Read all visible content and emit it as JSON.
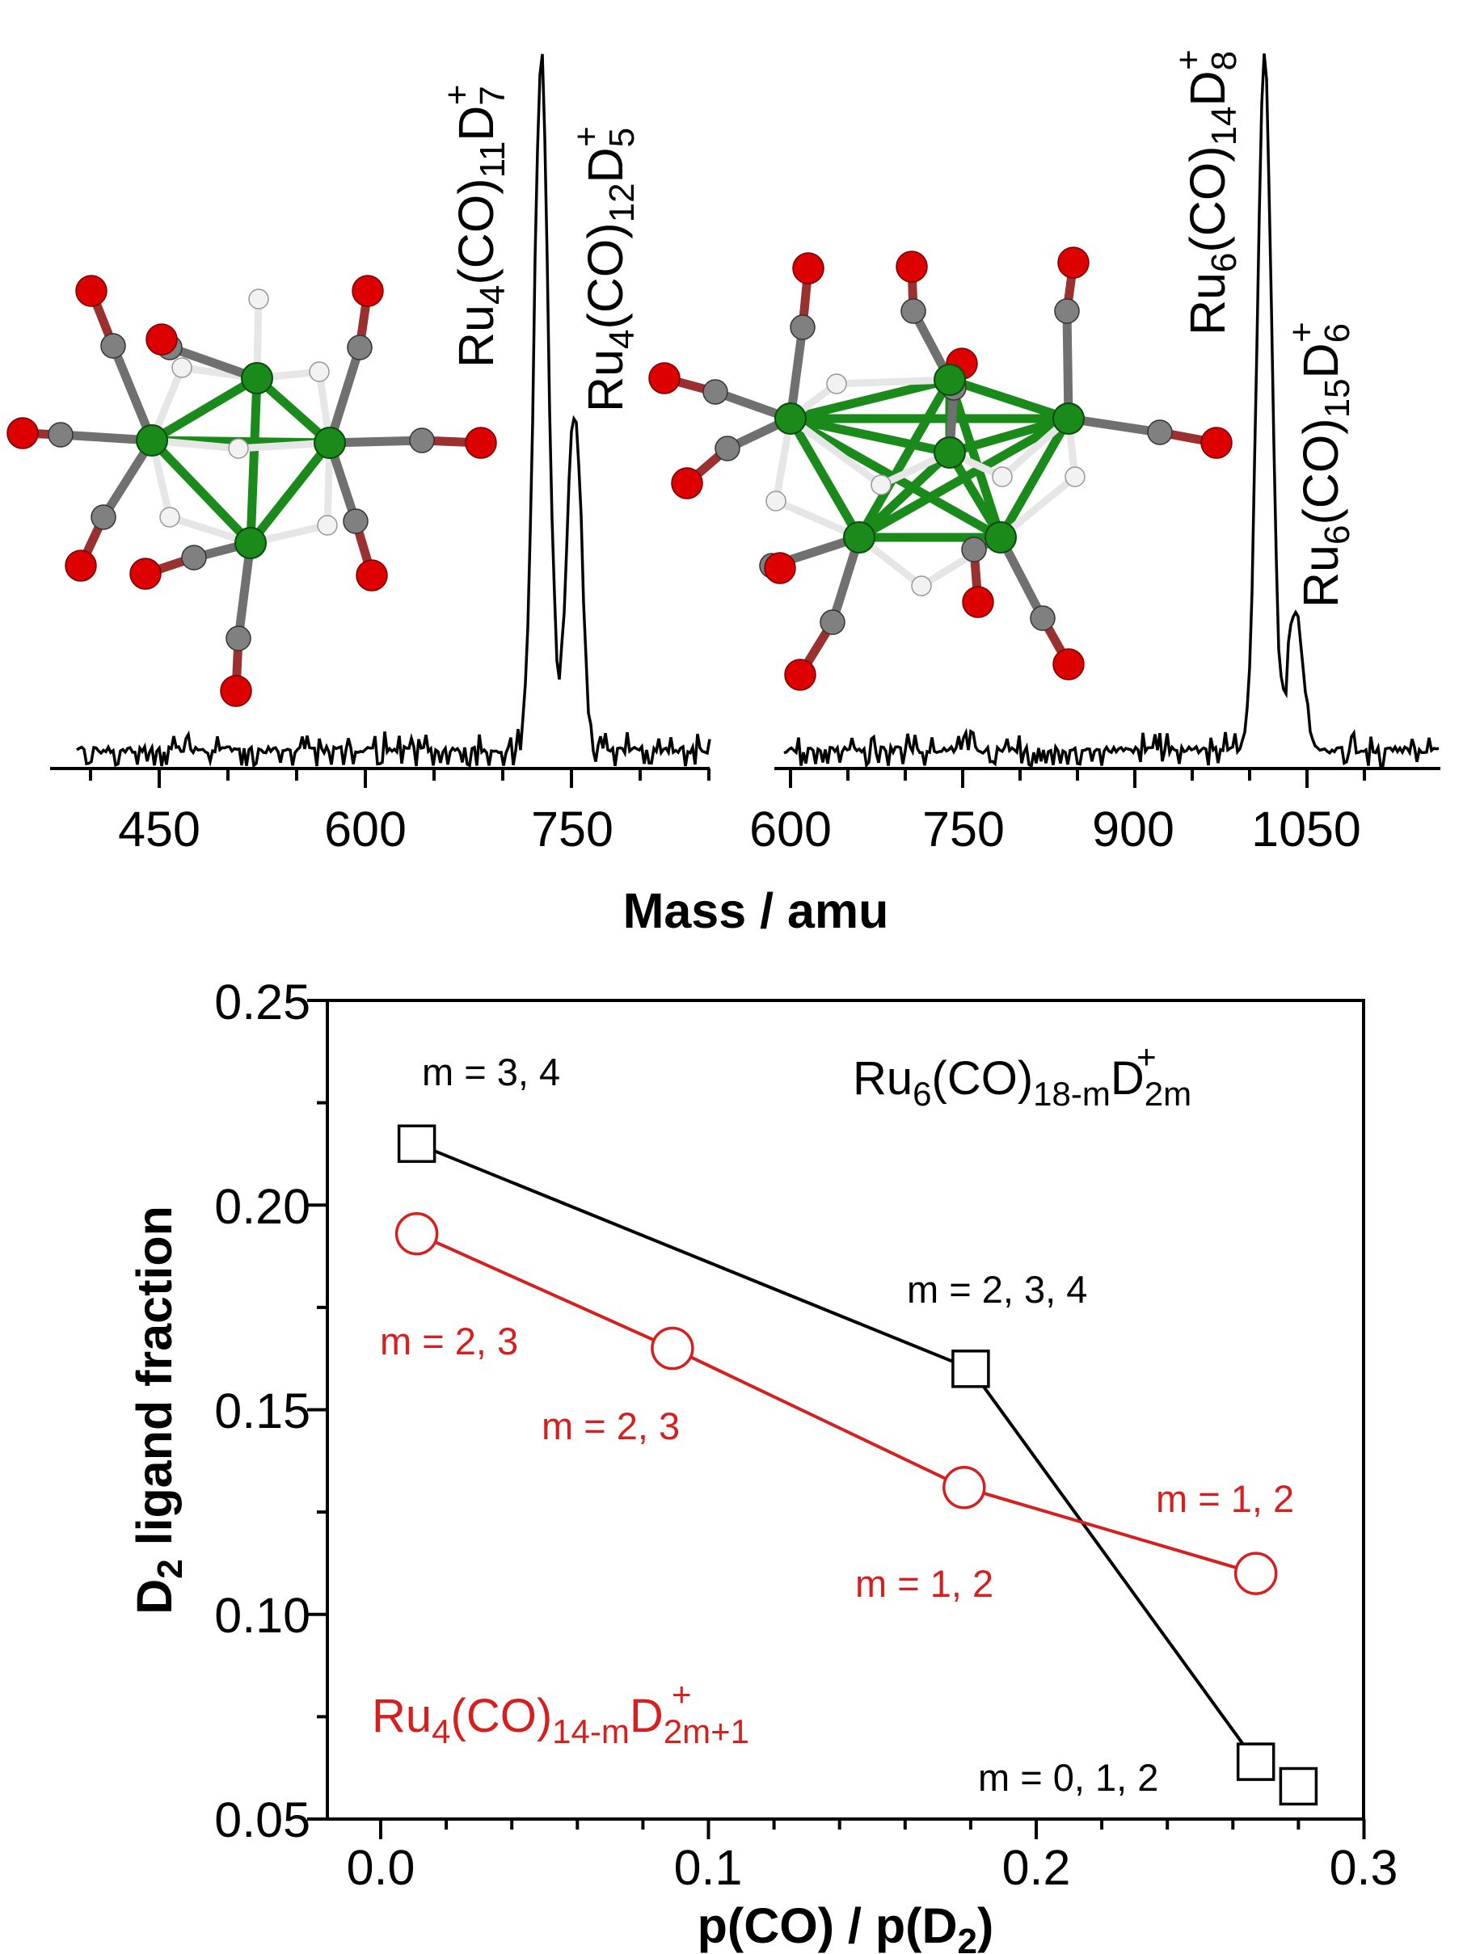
{
  "colors": {
    "black": "#000000",
    "red": "#d61f1f",
    "ru": "#1a8a1a",
    "c": "#808080",
    "o": "#dd0000",
    "d": "#f2f2f2"
  },
  "chart_data": [
    {
      "type": "line",
      "panel": "mass spectrum (left)",
      "xlim": [
        380,
        850
      ],
      "xticks": [
        "450",
        "600",
        "750"
      ],
      "peaks": [
        {
          "label": "Ru4(CO)11D7+",
          "mass": 728,
          "relative_intensity": 1.0
        },
        {
          "label": "Ru4(CO)12D5+",
          "mass": 752,
          "relative_intensity": 0.5
        }
      ],
      "labels": {
        "peak1": {
          "base": "Ru",
          "s1": "4",
          "mid": "(CO)",
          "s2": "11",
          "d": "D",
          "s3": "7",
          "charge": "+"
        },
        "peak2": {
          "base": "Ru",
          "s1": "4",
          "mid": "(CO)",
          "s2": "12",
          "d": "D",
          "s3": "5",
          "charge": "+"
        }
      }
    },
    {
      "type": "line",
      "panel": "mass spectrum (right)",
      "xlim": [
        590,
        1120
      ],
      "xticks": [
        "600",
        "750",
        "900",
        "1050"
      ],
      "peaks": [
        {
          "label": "Ru6(CO)14D8+",
          "mass": 1013,
          "relative_intensity": 1.0
        },
        {
          "label": "Ru6(CO)15D6+",
          "mass": 1040,
          "relative_intensity": 0.2
        }
      ],
      "labels": {
        "peak1": {
          "base": "Ru",
          "s1": "6",
          "mid": "(CO)",
          "s2": "14",
          "d": "D",
          "s3": "8",
          "charge": "+"
        },
        "peak2": {
          "base": "Ru",
          "s1": "6",
          "mid": "(CO)",
          "s2": "15",
          "d": "D",
          "s3": "6",
          "charge": "+"
        }
      },
      "xlabel": "Mass / amu"
    },
    {
      "type": "line",
      "panel": "D2 ligand fraction",
      "xlabel": {
        "text": "p(CO) / p(D",
        "sub": "2",
        "end": ")"
      },
      "ylabel": {
        "text": "D",
        "sub": "2",
        "rest": " ligand fraction"
      },
      "xlim": [
        -0.01,
        0.3
      ],
      "ylim": [
        0.05,
        0.25
      ],
      "xticks": [
        "0.0",
        "0.1",
        "0.2",
        "0.3"
      ],
      "yticks": [
        "0.05",
        "0.10",
        "0.15",
        "0.20",
        "0.25"
      ],
      "series": [
        {
          "name": "Ru6(CO)18-mD2m+",
          "marker": "square",
          "x": [
            0.011,
            0.18,
            0.267,
            0.28
          ],
          "y": [
            0.215,
            0.16,
            0.064,
            0.058
          ],
          "annotations": [
            "m = 3, 4",
            "m = 2, 3, 4",
            "m = 0, 1, 2"
          ]
        },
        {
          "name": "Ru4(CO)14-mD2m+1+",
          "marker": "circle",
          "x": [
            0.011,
            0.089,
            0.178,
            0.267
          ],
          "y": [
            0.193,
            0.165,
            0.131,
            0.11
          ],
          "annotations": [
            "m = 2, 3",
            "m = 2, 3",
            "m = 1, 2",
            "m = 1, 2"
          ]
        }
      ],
      "legend": {
        "black": {
          "base": "Ru",
          "s1": "6",
          "mid": "(CO)",
          "s2": "18-m",
          "d": "D",
          "s3": "2m",
          "charge": "+"
        },
        "red": {
          "base": "Ru",
          "s1": "4",
          "mid": "(CO)",
          "s2": "14-m",
          "d": "D",
          "s3": "2m+1",
          "charge": "+"
        }
      }
    }
  ]
}
